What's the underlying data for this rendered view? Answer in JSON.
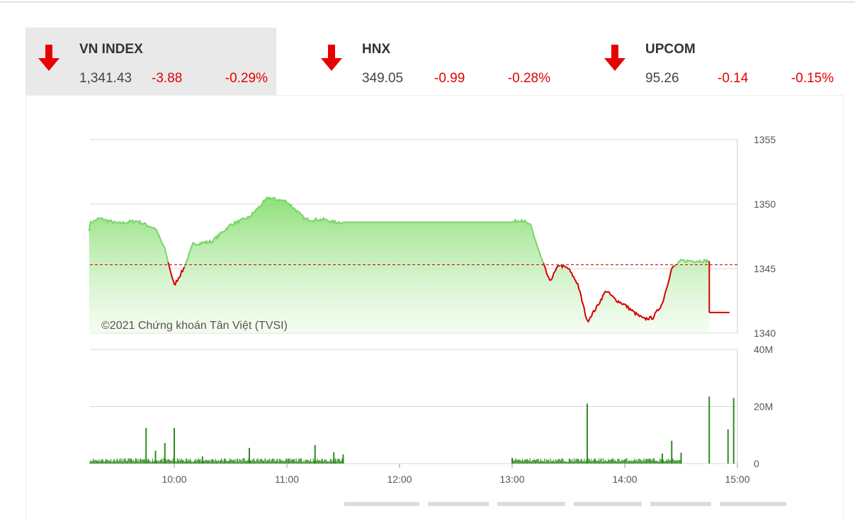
{
  "indices": [
    {
      "name": "VN INDEX",
      "value": "1,341.43",
      "change": "-3.88",
      "percent": "-0.29%",
      "direction": "down",
      "selected": true
    },
    {
      "name": "HNX",
      "value": "349.05",
      "change": "-0.99",
      "percent": "-0.28%",
      "direction": "down",
      "selected": false
    },
    {
      "name": "UPCOM",
      "value": "95.26",
      "change": "-0.14",
      "percent": "-0.15%",
      "direction": "down",
      "selected": false
    }
  ],
  "colors": {
    "down": "#e60000",
    "up_line": "#7ad46a",
    "area_top": "#8fe07a",
    "volume": "#2e8b1f",
    "reference": "#d40000",
    "grid": "#d9d9d9"
  },
  "chart_data": [
    {
      "type": "area",
      "watermark": "©2021 Chứng khoán Tân Việt (TVSI)",
      "reference_value": 1345.3,
      "ylim": [
        1340,
        1355
      ],
      "yticks": [
        1340,
        1345,
        1350,
        1355
      ],
      "ytick_labels": [
        "1340",
        "1345",
        "1350",
        "1355"
      ],
      "xlim": [
        "09:15",
        "15:00"
      ],
      "xticks": [
        "10:00",
        "11:00",
        "12:00",
        "13:00",
        "14:00",
        "15:00"
      ],
      "grid": true,
      "x": [
        "09:15",
        "09:20",
        "09:30",
        "09:40",
        "09:50",
        "09:55",
        "10:00",
        "10:05",
        "10:10",
        "10:15",
        "10:20",
        "10:30",
        "10:40",
        "10:50",
        "11:00",
        "11:10",
        "11:15",
        "11:20",
        "11:25",
        "11:30",
        "13:00",
        "13:05",
        "13:10",
        "13:15",
        "13:20",
        "13:25",
        "13:30",
        "13:35",
        "13:40",
        "13:45",
        "13:50",
        "13:55",
        "14:00",
        "14:05",
        "14:10",
        "14:15",
        "14:20",
        "14:25",
        "14:30",
        "14:35",
        "14:45",
        "14:45"
      ],
      "y": [
        1348.5,
        1348.9,
        1348.5,
        1348.7,
        1348.1,
        1346.5,
        1343.7,
        1345.0,
        1346.9,
        1347.0,
        1347.1,
        1348.4,
        1349.0,
        1350.5,
        1350.2,
        1348.8,
        1348.8,
        1348.8,
        1348.6,
        1348.6,
        1348.6,
        1348.8,
        1348.3,
        1346.0,
        1344.0,
        1345.3,
        1345.0,
        1343.8,
        1340.9,
        1342.0,
        1343.3,
        1342.6,
        1342.2,
        1341.6,
        1341.1,
        1341.2,
        1342.3,
        1345.0,
        1345.6,
        1345.6,
        1345.6,
        1341.6
      ]
    },
    {
      "type": "bar",
      "ylim": [
        0,
        40000000
      ],
      "yticks": [
        0,
        20000000,
        40000000
      ],
      "ytick_labels": [
        "0",
        "20M",
        "40M"
      ],
      "xticks": [
        "10:00",
        "11:00",
        "12:00",
        "13:00",
        "14:00",
        "15:00"
      ],
      "grid": true,
      "x": [
        "09:45",
        "09:50",
        "09:55",
        "10:00",
        "10:15",
        "10:40",
        "11:15",
        "11:25",
        "11:30",
        "13:00",
        "13:40",
        "14:20",
        "14:25",
        "14:30",
        "14:45",
        "14:55",
        "14:58"
      ],
      "values": [
        12500000,
        4500000,
        7200000,
        12500000,
        2500000,
        5500000,
        6500000,
        4000000,
        3200000,
        2000000,
        21000000,
        3500000,
        8000000,
        3800000,
        23500000,
        12000000,
        23000000
      ],
      "baseline_values": 1500000
    }
  ]
}
